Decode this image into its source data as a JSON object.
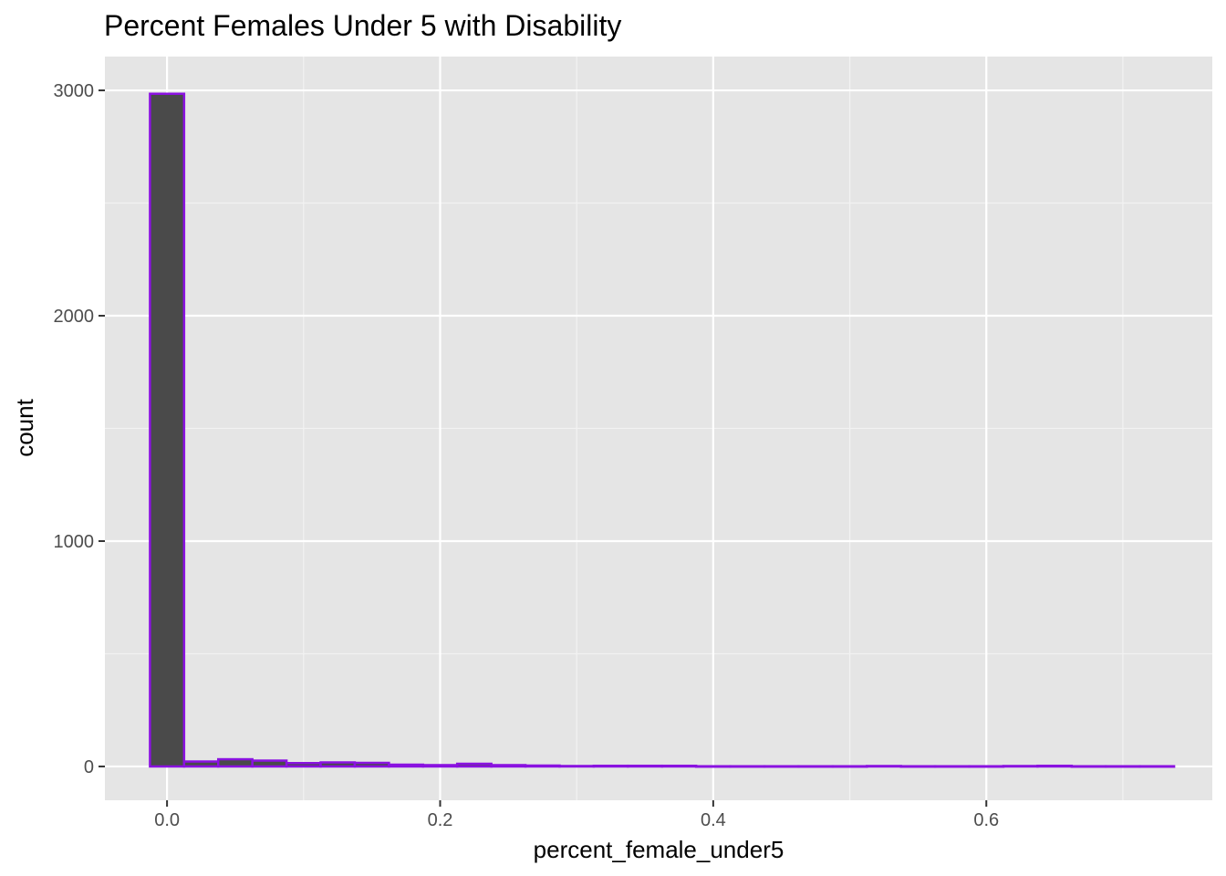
{
  "chart_data": {
    "type": "bar",
    "title": "Percent Females Under 5 with Disability",
    "xlabel": "percent_female_under5",
    "ylabel": "count",
    "xlim": [
      -0.0455,
      0.7655
    ],
    "ylim": [
      -150,
      3150
    ],
    "x_ticks": [
      0.0,
      0.2,
      0.4,
      0.6
    ],
    "x_tick_labels": [
      "0.0",
      "0.2",
      "0.4",
      "0.6"
    ],
    "y_ticks": [
      0,
      1000,
      2000,
      3000
    ],
    "y_tick_labels": [
      "0",
      "1000",
      "2000",
      "3000"
    ],
    "x_minor_breaks": [
      0.1,
      0.3,
      0.5,
      0.7
    ],
    "y_minor_breaks": [
      500,
      1500,
      2500
    ],
    "bin_width": 0.025,
    "bin_centers": [
      0.0,
      0.025,
      0.05,
      0.075,
      0.1,
      0.125,
      0.15,
      0.175,
      0.2,
      0.225,
      0.25,
      0.275,
      0.3,
      0.325,
      0.35,
      0.375,
      0.4,
      0.425,
      0.45,
      0.475,
      0.5,
      0.525,
      0.55,
      0.575,
      0.6,
      0.625,
      0.65,
      0.675,
      0.7,
      0.725
    ],
    "counts": [
      2985,
      22,
      32,
      26,
      15,
      18,
      16,
      8,
      6,
      12,
      6,
      4,
      2,
      3,
      3,
      3,
      1,
      1,
      1,
      1,
      1,
      2,
      1,
      1,
      1,
      2,
      3,
      1,
      1,
      1
    ],
    "grid": true,
    "legend": "none",
    "colors": {
      "bar_fill": "#4a4a4a",
      "bar_outline": "#8a12e0",
      "panel_background": "#e5e5e5",
      "grid_major": "#ffffff",
      "grid_minor": "#f2f2f2",
      "tick_text": "#4d4d4d",
      "tick_mark": "#333333"
    }
  }
}
